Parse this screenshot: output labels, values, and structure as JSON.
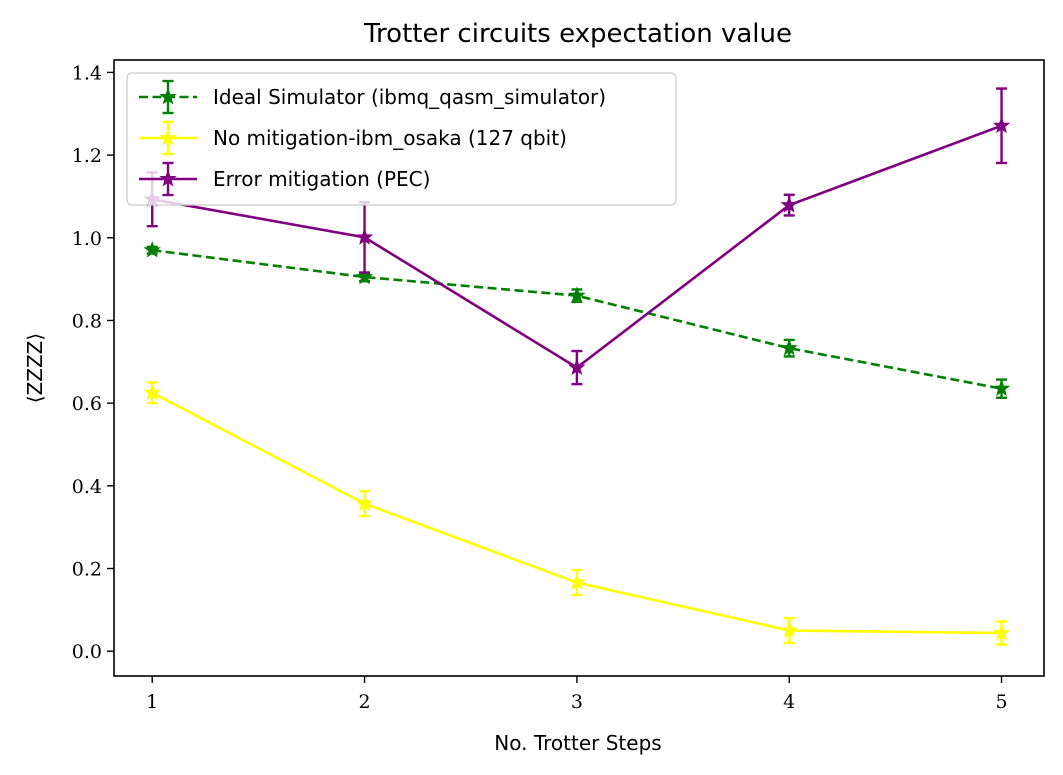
{
  "chart_data": {
    "type": "line",
    "title": "Trotter circuits expectation value",
    "xlabel": "No. Trotter Steps",
    "ylabel": "⟨ZZZZ⟩",
    "x": [
      1,
      2,
      3,
      4,
      5
    ],
    "xlim": [
      0.82,
      5.2
    ],
    "ylim": [
      -0.06,
      1.43
    ],
    "xticks": [
      "1",
      "2",
      "3",
      "4",
      "5"
    ],
    "yticks": [
      "0.0",
      "0.2",
      "0.4",
      "0.6",
      "0.8",
      "1.0",
      "1.2",
      "1.4"
    ],
    "grid": false,
    "legend_position": "upper-left",
    "series": [
      {
        "name": "Ideal Simulator (ibmq_qasm_simulator)",
        "color": "#008000",
        "linestyle": "dashed",
        "marker": "star",
        "values": [
          0.97,
          0.905,
          0.86,
          0.733,
          0.635
        ],
        "errors": [
          0.008,
          0.01,
          0.015,
          0.02,
          0.022
        ]
      },
      {
        "name": "No mitigation-ibm_osaka (127 qbit)",
        "color": "#ffff00",
        "linestyle": "solid",
        "marker": "star",
        "values": [
          0.625,
          0.357,
          0.166,
          0.05,
          0.044
        ],
        "errors": [
          0.025,
          0.03,
          0.03,
          0.03,
          0.028
        ]
      },
      {
        "name": "Error mitigation (PEC)",
        "color": "#800080",
        "linestyle": "solid",
        "marker": "star",
        "values": [
          1.093,
          1.001,
          0.686,
          1.079,
          1.271
        ],
        "errors": [
          0.065,
          0.085,
          0.04,
          0.025,
          0.09
        ]
      }
    ]
  }
}
